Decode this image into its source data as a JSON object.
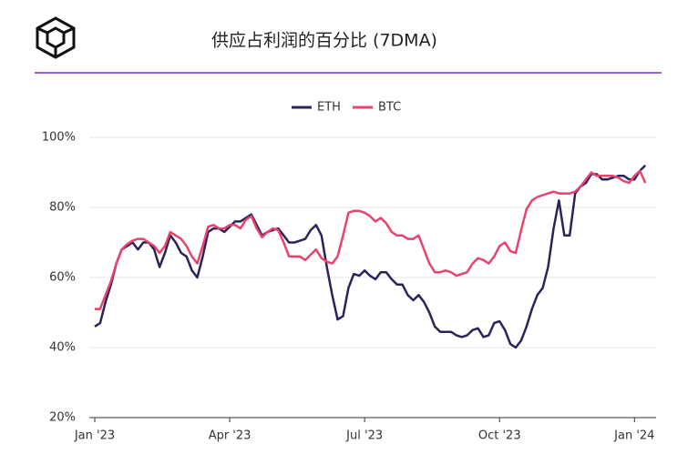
{
  "chart_data": {
    "type": "line",
    "title": "供应占利润的百分比 (7DMA)",
    "x": [
      2023.0,
      2023.01,
      2023.02,
      2023.03,
      2023.04,
      2023.05,
      2023.06,
      2023.07,
      2023.08,
      2023.09,
      2023.1,
      2023.11,
      2023.12,
      2023.13,
      2023.14,
      2023.15,
      2023.16,
      2023.17,
      2023.18,
      2023.19,
      2023.2,
      2023.21,
      2023.22,
      2023.23,
      2023.24,
      2023.25,
      2023.26,
      2023.27,
      2023.28,
      2023.29,
      2023.3,
      2023.31,
      2023.32,
      2023.33,
      2023.34,
      2023.35,
      2023.36,
      2023.37,
      2023.38,
      2023.39,
      2023.4,
      2023.41,
      2023.42,
      2023.43,
      2023.44,
      2023.45,
      2023.46,
      2023.47,
      2023.48,
      2023.49,
      2023.5,
      2023.51,
      2023.52,
      2023.53,
      2023.54,
      2023.55,
      2023.56,
      2023.57,
      2023.58,
      2023.59,
      2023.6,
      2023.61,
      2023.62,
      2023.63,
      2023.64,
      2023.65,
      2023.66,
      2023.67,
      2023.68,
      2023.69,
      2023.7,
      2023.71,
      2023.72,
      2023.73,
      2023.74,
      2023.75,
      2023.76,
      2023.77,
      2023.78,
      2023.79,
      2023.8,
      2023.81,
      2023.82,
      2023.83,
      2023.84,
      2023.85,
      2023.86,
      2023.87,
      2023.88,
      2023.89,
      2023.9,
      2023.91,
      2023.92,
      2023.93,
      2023.94,
      2023.95,
      2023.96,
      2023.97,
      2023.98,
      2023.99,
      2024.0,
      2024.01,
      2024.02
    ],
    "series": [
      {
        "name": "ETH",
        "color": "#2b2458",
        "values": [
          46,
          47,
          53,
          58,
          64,
          68,
          69,
          70,
          68,
          70,
          70,
          68,
          63,
          67,
          72,
          70,
          67,
          66,
          62,
          60,
          66,
          73,
          74,
          74,
          73,
          74.5,
          76,
          76,
          77,
          78,
          75,
          72,
          73,
          73.5,
          74,
          72,
          70,
          70,
          70.5,
          71,
          73.5,
          75,
          72,
          63,
          55,
          48,
          49,
          57,
          61,
          60.5,
          62,
          60.5,
          59.5,
          61.5,
          61.5,
          59.5,
          58,
          58,
          55,
          53.5,
          55,
          53,
          50,
          46,
          44.5,
          44.5,
          44.5,
          43.5,
          43,
          43.5,
          45,
          45.5,
          43,
          43.5,
          47,
          47.5,
          45,
          41,
          40,
          42,
          46,
          51,
          55,
          57,
          63,
          74,
          82,
          72,
          72,
          84,
          86,
          87,
          89.5,
          89.5,
          88,
          88,
          88.5,
          89,
          89,
          88,
          88,
          90.5,
          92
        ]
      },
      {
        "name": "BTC",
        "color": "#e8436d",
        "values": [
          51,
          51,
          55,
          59,
          64,
          68,
          69.5,
          70.5,
          71,
          71,
          70,
          69,
          67,
          69,
          73,
          72,
          71,
          69,
          66,
          64,
          69,
          74.5,
          75,
          74,
          74,
          75,
          75,
          74,
          76.5,
          77.5,
          74,
          71.5,
          73,
          74,
          73.5,
          70,
          66,
          66,
          66,
          65,
          66.5,
          68,
          65.5,
          64.5,
          64,
          66,
          72,
          78.5,
          79,
          79,
          78.5,
          77.5,
          76,
          77,
          75.5,
          73,
          72,
          72,
          71,
          71,
          72,
          68,
          64,
          61.5,
          61.5,
          62,
          61.5,
          60.5,
          61,
          61.5,
          64,
          65.5,
          65,
          64,
          66,
          69,
          70,
          67.5,
          67,
          73.5,
          79.5,
          82,
          83,
          83.5,
          84,
          84.5,
          84,
          84,
          84,
          84.5,
          86,
          88,
          90,
          89,
          89,
          89,
          89,
          88.5,
          87.5,
          87,
          89,
          90.5,
          87
        ]
      }
    ],
    "xlim": [
      2023.0,
      2024.04
    ],
    "xticks": [
      {
        "value": 2023.0,
        "label": "Jan '23"
      },
      {
        "value": 2023.25,
        "label": "Apr '23"
      },
      {
        "value": 2023.5,
        "label": "Jul '23"
      },
      {
        "value": 2023.75,
        "label": "Oct '23"
      },
      {
        "value": 2024.0,
        "label": "Jan '24"
      }
    ],
    "ylim": [
      20,
      100
    ],
    "yticks": [
      {
        "value": 20,
        "label": "20%"
      },
      {
        "value": 40,
        "label": "40%"
      },
      {
        "value": 60,
        "label": "60%"
      },
      {
        "value": 80,
        "label": "80%"
      },
      {
        "value": 100,
        "label": "100%"
      }
    ],
    "grid": true,
    "legend": "top"
  }
}
